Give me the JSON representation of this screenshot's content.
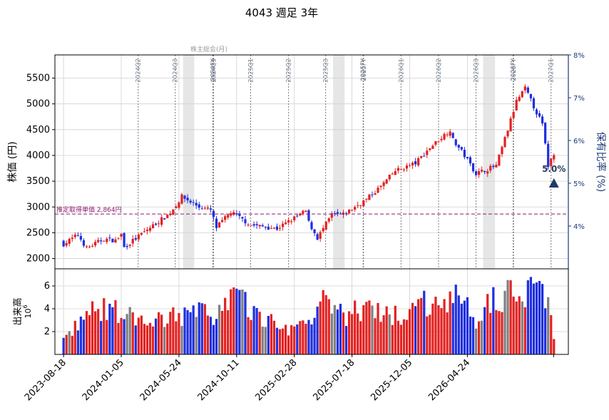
{
  "title": "4043 週足 3年",
  "colors": {
    "up": "#e32222",
    "down": "#1f2fe0",
    "flat": "#808080",
    "avg": "#8b1a6b",
    "axis_right": "#1f3a7a",
    "grid": "#d0d0d0",
    "band": "#e6e6e6",
    "event": "#7a7a7a"
  },
  "chart_data": [
    {
      "type": "candlestick",
      "ylabel": "株価 (円)",
      "y2label": "保有比率 (%)",
      "ylim": [
        1800,
        5950
      ],
      "y2lim": [
        3.0,
        8.0
      ],
      "yticks": [
        2000,
        2500,
        3000,
        3500,
        4000,
        4500,
        5000,
        5500
      ],
      "y2ticks": [
        "4%",
        "5%",
        "6%",
        "7%",
        "8%"
      ],
      "avg_line": {
        "value": 2864,
        "label": "推定取得単価 2,864円"
      },
      "band_label": "株主総会(月)",
      "events": [
        {
          "date": "2024-02-15",
          "label": "2024Q2"
        },
        {
          "date": "2024-05-15",
          "label": "2024Q3"
        },
        {
          "date": "2024-08-14",
          "label": "2024FY"
        },
        {
          "date": "2024-08-16",
          "label": "2024Q3"
        },
        {
          "date": "2024-11-14",
          "label": "2025Q1"
        },
        {
          "date": "2025-02-14",
          "label": "2025Q2"
        },
        {
          "date": "2025-05-15",
          "label": "2025Q3"
        },
        {
          "date": "2025-08-14",
          "label": "2025FY"
        },
        {
          "date": "2025-08-15",
          "label": "2025FY"
        },
        {
          "date": "2025-11-14",
          "label": "2026Q1"
        },
        {
          "date": "2026-02-13",
          "label": "2026Q2"
        },
        {
          "date": "2026-05-15",
          "label": "2026Q3"
        },
        {
          "date": "2026-08-13",
          "label": "2026FY"
        },
        {
          "date": "2026-08-14",
          "label": "2026FY"
        },
        {
          "date": "2026-11-13",
          "label": "2027Q1"
        }
      ],
      "holding_marker": {
        "date": "2026-11-20",
        "value_pct": 5.0,
        "label": "5.0%"
      },
      "series_anchors": [
        {
          "date": "2023-08-18",
          "close": 2280
        },
        {
          "date": "2023-09-22",
          "close": 2460
        },
        {
          "date": "2023-10-13",
          "close": 2200
        },
        {
          "date": "2023-11-24",
          "close": 2380
        },
        {
          "date": "2023-12-22",
          "close": 2350
        },
        {
          "date": "2024-01-05",
          "close": 2470
        },
        {
          "date": "2024-01-12",
          "close": 2220
        },
        {
          "date": "2024-03-08",
          "close": 2560
        },
        {
          "date": "2024-05-03",
          "close": 2880
        },
        {
          "date": "2024-05-31",
          "close": 3200
        },
        {
          "date": "2024-07-12",
          "close": 3000
        },
        {
          "date": "2024-08-09",
          "close": 2940
        },
        {
          "date": "2024-08-23",
          "close": 2600
        },
        {
          "date": "2024-09-27",
          "close": 2900
        },
        {
          "date": "2024-11-15",
          "close": 2650
        },
        {
          "date": "2025-01-17",
          "close": 2580
        },
        {
          "date": "2025-03-28",
          "close": 2920
        },
        {
          "date": "2025-04-04",
          "close": 2700
        },
        {
          "date": "2025-04-25",
          "close": 2400
        },
        {
          "date": "2025-05-30",
          "close": 2850
        },
        {
          "date": "2025-06-27",
          "close": 2850
        },
        {
          "date": "2025-08-22",
          "close": 3150
        },
        {
          "date": "2025-09-26",
          "close": 3400
        },
        {
          "date": "2025-10-31",
          "close": 3700
        },
        {
          "date": "2025-12-19",
          "close": 3850
        },
        {
          "date": "2026-01-23",
          "close": 4150
        },
        {
          "date": "2026-03-13",
          "close": 4500
        },
        {
          "date": "2026-03-20",
          "close": 4300
        },
        {
          "date": "2026-04-17",
          "close": 4000
        },
        {
          "date": "2026-05-15",
          "close": 3650
        },
        {
          "date": "2026-07-03",
          "close": 3800
        },
        {
          "date": "2026-07-31",
          "close": 4500
        },
        {
          "date": "2026-08-21",
          "close": 5050
        },
        {
          "date": "2026-09-11",
          "close": 5300
        },
        {
          "date": "2026-10-02",
          "close": 4950
        },
        {
          "date": "2026-10-23",
          "close": 4600
        },
        {
          "date": "2026-11-06",
          "close": 3800
        },
        {
          "date": "2026-11-20",
          "close": 4050
        }
      ]
    },
    {
      "type": "bar",
      "ylabel": "出来高",
      "yscale_label": "1e6",
      "ylim": [
        0,
        7.5
      ],
      "yticks": [
        2,
        4,
        6
      ],
      "volume_anchors": [
        {
          "date": "2023-08-18",
          "value": 1.5
        },
        {
          "date": "2023-10-20",
          "value": 4.4
        },
        {
          "date": "2024-01-05",
          "value": 4.6
        },
        {
          "date": "2024-03-01",
          "value": 2.9
        },
        {
          "date": "2024-05-10",
          "value": 4.1
        },
        {
          "date": "2024-08-16",
          "value": 4.3
        },
        {
          "date": "2024-10-04",
          "value": 5.9
        },
        {
          "date": "2025-01-31",
          "value": 2.4
        },
        {
          "date": "2025-03-28",
          "value": 3.5
        },
        {
          "date": "2025-05-09",
          "value": 5.2
        },
        {
          "date": "2025-07-04",
          "value": 4.0
        },
        {
          "date": "2025-07-25",
          "value": 4.5
        },
        {
          "date": "2025-11-07",
          "value": 4.0
        },
        {
          "date": "2026-02-27",
          "value": 6.1
        },
        {
          "date": "2026-04-10",
          "value": 5.4
        },
        {
          "date": "2026-05-22",
          "value": 3.1
        },
        {
          "date": "2026-06-26",
          "value": 6.4
        },
        {
          "date": "2026-07-17",
          "value": 6.0
        },
        {
          "date": "2026-08-07",
          "value": 6.2
        },
        {
          "date": "2026-10-23",
          "value": 6.9
        },
        {
          "date": "2026-11-13",
          "value": 4.3
        },
        {
          "date": "2026-11-20",
          "value": 1.5
        }
      ]
    }
  ],
  "x_axis": {
    "ticks": [
      "2023-08-18",
      "2024-01-05",
      "2024-05-24",
      "2024-10-11",
      "2025-02-28",
      "2025-07-18",
      "2025-12-05",
      "2026-04-24"
    ]
  }
}
